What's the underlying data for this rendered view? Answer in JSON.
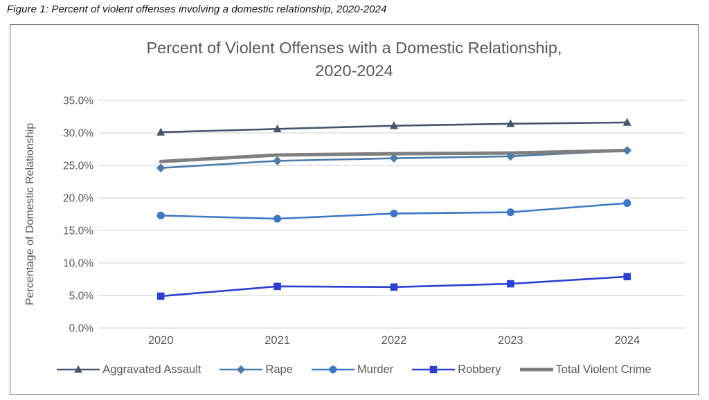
{
  "figure_caption": "Figure 1: Percent of violent offenses involving a domestic relationship, 2020-2024",
  "chart_data": {
    "type": "line",
    "title": "Percent of Violent Offenses with a Domestic Relationship, 2020-2024",
    "title_lines": [
      "Percent of Violent Offenses with a Domestic Relationship,",
      "2020-2024"
    ],
    "xlabel": "",
    "ylabel": "Percentage of Domestic Relationship",
    "categories": [
      "2020",
      "2021",
      "2022",
      "2023",
      "2024"
    ],
    "ylim": [
      0,
      35
    ],
    "ytick_step": 5,
    "ytick_labels": [
      "0.0%",
      "5.0%",
      "10.0%",
      "15.0%",
      "20.0%",
      "25.0%",
      "30.0%",
      "35.0%"
    ],
    "grid": true,
    "legend_position": "bottom",
    "colors": {
      "gridline": "#d6d6d6",
      "axis_text": "#595959",
      "title_text": "#595959",
      "frame_border": "#6f6f6f"
    },
    "series": [
      {
        "name": "Aggravated Assault",
        "marker": "triangle",
        "color": "#44546a",
        "line_width": 2.6,
        "values": [
          30.1,
          30.6,
          31.1,
          31.4,
          31.6
        ]
      },
      {
        "name": "Rape",
        "marker": "diamond",
        "color": "#4b7ba8",
        "line_width": 2.6,
        "values": [
          24.6,
          25.7,
          26.1,
          26.4,
          27.3
        ]
      },
      {
        "name": "Murder",
        "marker": "circle",
        "color": "#3c78c4",
        "line_width": 2.6,
        "values": [
          17.3,
          16.8,
          17.6,
          17.8,
          19.2
        ]
      },
      {
        "name": "Robbery",
        "marker": "square",
        "color": "#2b40d2",
        "line_width": 2.6,
        "values": [
          4.9,
          6.4,
          6.3,
          6.8,
          7.9
        ]
      },
      {
        "name": "Total Violent Crime",
        "marker": "none",
        "color": "#7f7f7f",
        "line_width": 5,
        "values": [
          25.6,
          26.6,
          26.8,
          26.9,
          27.3
        ]
      }
    ]
  }
}
